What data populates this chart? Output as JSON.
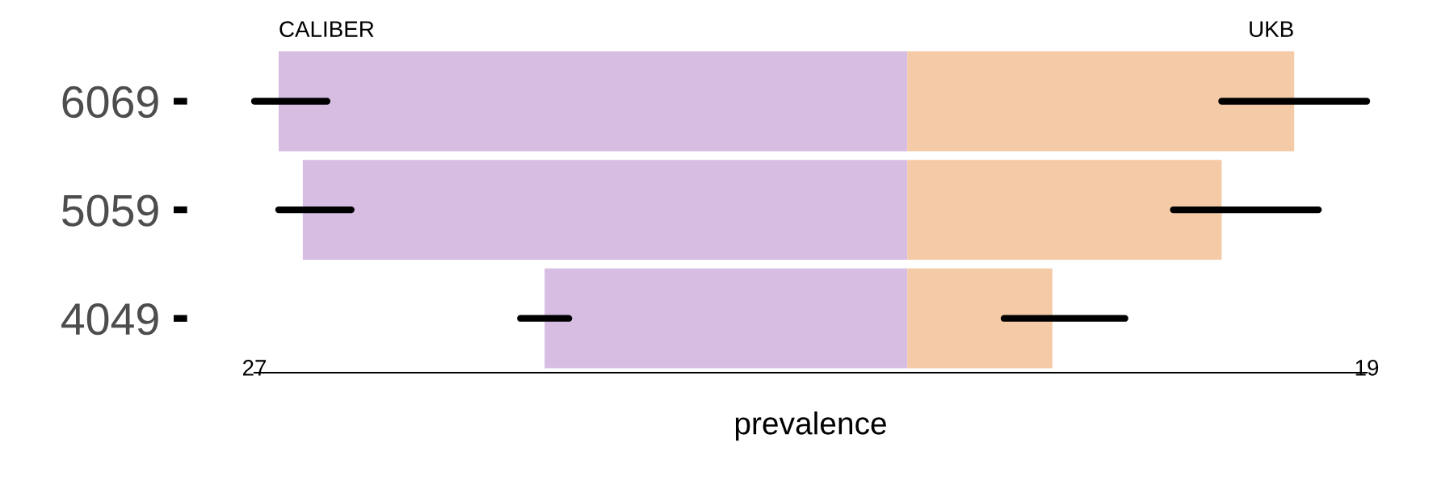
{
  "chart_data": {
    "type": "bar",
    "orientation": "horizontal",
    "xlabel": "prevalence",
    "categories": [
      "6069",
      "5059",
      "4049"
    ],
    "series": [
      {
        "name": "CALIBER",
        "color": "#d8bde3",
        "values": [
          -26,
          -25,
          -15
        ],
        "errors": [
          [
            -27,
            -24
          ],
          [
            -26,
            -23
          ],
          [
            -16,
            -14
          ]
        ]
      },
      {
        "name": "UKB",
        "color": "#f5cba7",
        "values": [
          16,
          13,
          6
        ],
        "errors": [
          [
            13,
            19
          ],
          [
            11,
            17
          ],
          [
            4,
            9
          ]
        ]
      }
    ],
    "xlim": [
      -27,
      19
    ],
    "xticks": [
      {
        "value": -27,
        "label": "27"
      },
      {
        "value": 19,
        "label": "19"
      }
    ],
    "stacked": true,
    "grid": false,
    "legend": false
  }
}
